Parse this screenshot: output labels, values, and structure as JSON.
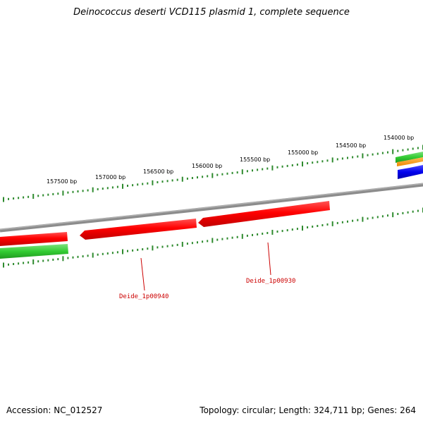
{
  "title": "Deinococcus deserti VCD115 plasmid 1, complete sequence",
  "ruler": {
    "unit": "bp",
    "tick_labels": [
      "157500 bp",
      "157000 bp",
      "156500 bp",
      "156000 bp",
      "155500 bp",
      "155000 bp",
      "154500 bp",
      "154000 bp"
    ]
  },
  "genes": [
    {
      "label": "Deide_1p00940",
      "color": "#cc0000"
    },
    {
      "label": "Deide_1p00930",
      "color": "#cc0000"
    }
  ],
  "colors": {
    "backbone": "#8c8c8c",
    "forward_red": "#ff1a1a",
    "track_green": "#33cc33",
    "tick_green": "#2e8b2e",
    "orange": "#ff9900",
    "blue": "#0000ee"
  },
  "footer": {
    "accession": "Accession: NC_012527",
    "summary": "Topology: circular; Length: 324,711 bp; Genes: 264"
  }
}
